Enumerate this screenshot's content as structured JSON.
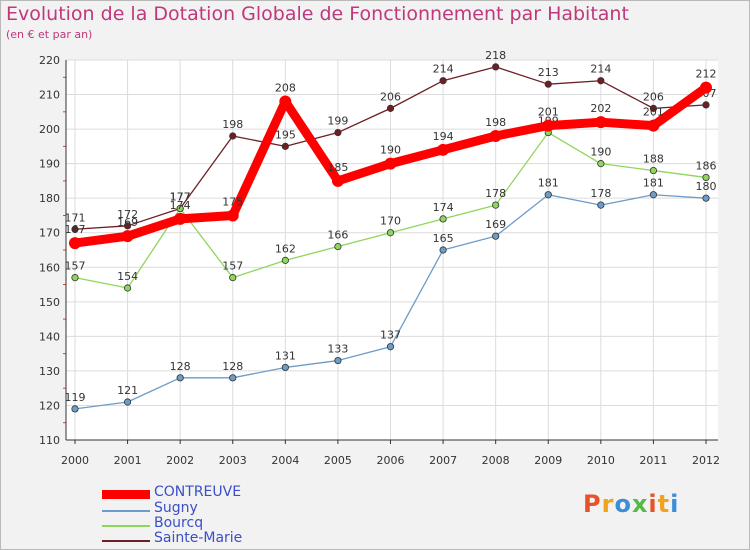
{
  "chart_data": {
    "type": "line",
    "title": "Evolution de la Dotation Globale de Fonctionnement par Habitant",
    "subtitle": "(en € et par an)",
    "xlabel": "",
    "ylabel": "",
    "categories": [
      "2000",
      "2001",
      "2002",
      "2003",
      "2004",
      "2005",
      "2006",
      "2007",
      "2008",
      "2009",
      "2010",
      "2011",
      "2012"
    ],
    "ylim": [
      110,
      220
    ],
    "yticks": [
      110,
      120,
      130,
      140,
      150,
      160,
      170,
      180,
      190,
      200,
      210,
      220
    ],
    "grid": true,
    "legend_position": "bottom-left",
    "series": [
      {
        "name": "Sainte-Marie",
        "color": "#6e1f24",
        "values": [
          171,
          172,
          177,
          198,
          195,
          199,
          206,
          214,
          218,
          213,
          214,
          206,
          207
        ],
        "labels": [
          "171",
          "172",
          "177",
          "198",
          "195",
          "199",
          "206",
          "214",
          "218",
          "213",
          "214",
          "206",
          "207"
        ],
        "highlight": false
      },
      {
        "name": "Bourcq",
        "color": "#8fd65c",
        "values": [
          157,
          154,
          177,
          157,
          162,
          166,
          170,
          174,
          178,
          199,
          190,
          188,
          186
        ],
        "labels": [
          "157",
          "154",
          "177",
          "157",
          "162",
          "166",
          "170",
          "174",
          "178",
          "199",
          "190",
          "188",
          "186"
        ],
        "highlight": false
      },
      {
        "name": "Sugny",
        "color": "#6d9cc8",
        "values": [
          119,
          121,
          128,
          128,
          131,
          133,
          137,
          165,
          169,
          181,
          178,
          181,
          180
        ],
        "labels": [
          "119",
          "121",
          "128",
          "128",
          "131",
          "133",
          "137",
          "165",
          "169",
          "181",
          "178",
          "181",
          "180"
        ],
        "highlight": false
      },
      {
        "name": "CONTREUVE",
        "color": "#ff0000",
        "values": [
          167,
          169,
          174,
          175,
          208,
          185,
          190,
          194,
          198,
          201,
          202,
          201,
          212
        ],
        "labels": [
          "167",
          "169",
          "174",
          "175",
          "208",
          "185",
          "190",
          "194",
          "198",
          "201",
          "202",
          "201",
          "212"
        ],
        "highlight": true
      }
    ]
  },
  "legend": {
    "items": [
      {
        "label": "CONTREUVE",
        "color": "#ff0000"
      },
      {
        "label": "Sugny",
        "color": "#6d9cc8"
      },
      {
        "label": "Bourcq",
        "color": "#8fd65c"
      },
      {
        "label": "Sainte-Marie",
        "color": "#6e1f24"
      }
    ]
  },
  "logo": {
    "letters": [
      "P",
      "r",
      "o",
      "x",
      "i",
      "t",
      "i"
    ],
    "colors": [
      "#e8522a",
      "#f3a21b",
      "#3a8fd6",
      "#57b947",
      "#e8522a",
      "#f3a21b",
      "#3a8fd6"
    ]
  }
}
